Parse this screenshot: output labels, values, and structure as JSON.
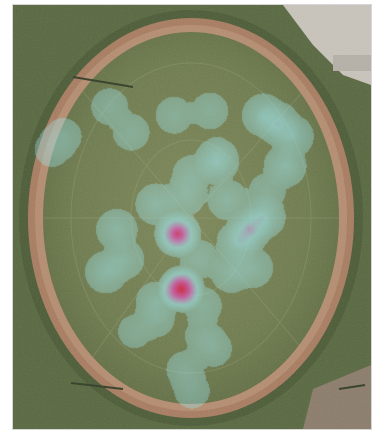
{
  "map": {
    "kind": "aerial-satellite",
    "subject": "oval-sports-field",
    "overlay": "heatmap",
    "colors": {
      "grass": "#6f7c4c",
      "grass_dark": "#4f5a36",
      "track": "#a87b5e",
      "surround": "#55663c",
      "pavement": "#c9c4bb",
      "heat_low": "#9fe3e8",
      "heat_mid": "#d05aa8",
      "heat_high": "#e0102a",
      "heat_peak": "#fff03a"
    }
  },
  "heatmap": {
    "points": [
      {
        "x": 0.47,
        "y": 0.67,
        "w": 1.0
      },
      {
        "x": 0.47,
        "y": 0.67,
        "w": 1.0
      },
      {
        "x": 0.46,
        "y": 0.54,
        "w": 0.95
      },
      {
        "x": 0.46,
        "y": 0.54,
        "w": 0.7
      },
      {
        "x": 0.66,
        "y": 0.53,
        "w": 0.7
      },
      {
        "x": 0.7,
        "y": 0.5,
        "w": 0.6
      },
      {
        "x": 0.63,
        "y": 0.56,
        "w": 0.55
      },
      {
        "x": 0.74,
        "y": 0.28,
        "w": 0.55
      },
      {
        "x": 0.7,
        "y": 0.26,
        "w": 0.5
      },
      {
        "x": 0.78,
        "y": 0.31,
        "w": 0.45
      },
      {
        "x": 0.57,
        "y": 0.37,
        "w": 0.55
      },
      {
        "x": 0.76,
        "y": 0.38,
        "w": 0.45
      },
      {
        "x": 0.29,
        "y": 0.53,
        "w": 0.35
      },
      {
        "x": 0.26,
        "y": 0.63,
        "w": 0.4
      },
      {
        "x": 0.31,
        "y": 0.6,
        "w": 0.3
      },
      {
        "x": 0.4,
        "y": 0.7,
        "w": 0.3
      },
      {
        "x": 0.61,
        "y": 0.63,
        "w": 0.35
      },
      {
        "x": 0.67,
        "y": 0.62,
        "w": 0.3
      },
      {
        "x": 0.52,
        "y": 0.6,
        "w": 0.25
      },
      {
        "x": 0.6,
        "y": 0.46,
        "w": 0.3
      },
      {
        "x": 0.4,
        "y": 0.47,
        "w": 0.35
      },
      {
        "x": 0.48,
        "y": 0.45,
        "w": 0.3
      },
      {
        "x": 0.5,
        "y": 0.4,
        "w": 0.25
      },
      {
        "x": 0.55,
        "y": 0.25,
        "w": 0.2
      },
      {
        "x": 0.45,
        "y": 0.26,
        "w": 0.2
      },
      {
        "x": 0.33,
        "y": 0.3,
        "w": 0.2
      },
      {
        "x": 0.27,
        "y": 0.24,
        "w": 0.2
      },
      {
        "x": 0.14,
        "y": 0.31,
        "w": 0.2
      },
      {
        "x": 0.11,
        "y": 0.34,
        "w": 0.18
      },
      {
        "x": 0.4,
        "y": 0.74,
        "w": 0.2
      },
      {
        "x": 0.53,
        "y": 0.71,
        "w": 0.22
      },
      {
        "x": 0.53,
        "y": 0.78,
        "w": 0.18
      },
      {
        "x": 0.56,
        "y": 0.81,
        "w": 0.2
      },
      {
        "x": 0.48,
        "y": 0.86,
        "w": 0.2
      },
      {
        "x": 0.5,
        "y": 0.91,
        "w": 0.18
      },
      {
        "x": 0.34,
        "y": 0.77,
        "w": 0.15
      },
      {
        "x": 0.57,
        "y": 0.35,
        "w": 0.15
      },
      {
        "x": 0.71,
        "y": 0.44,
        "w": 0.2
      }
    ]
  }
}
